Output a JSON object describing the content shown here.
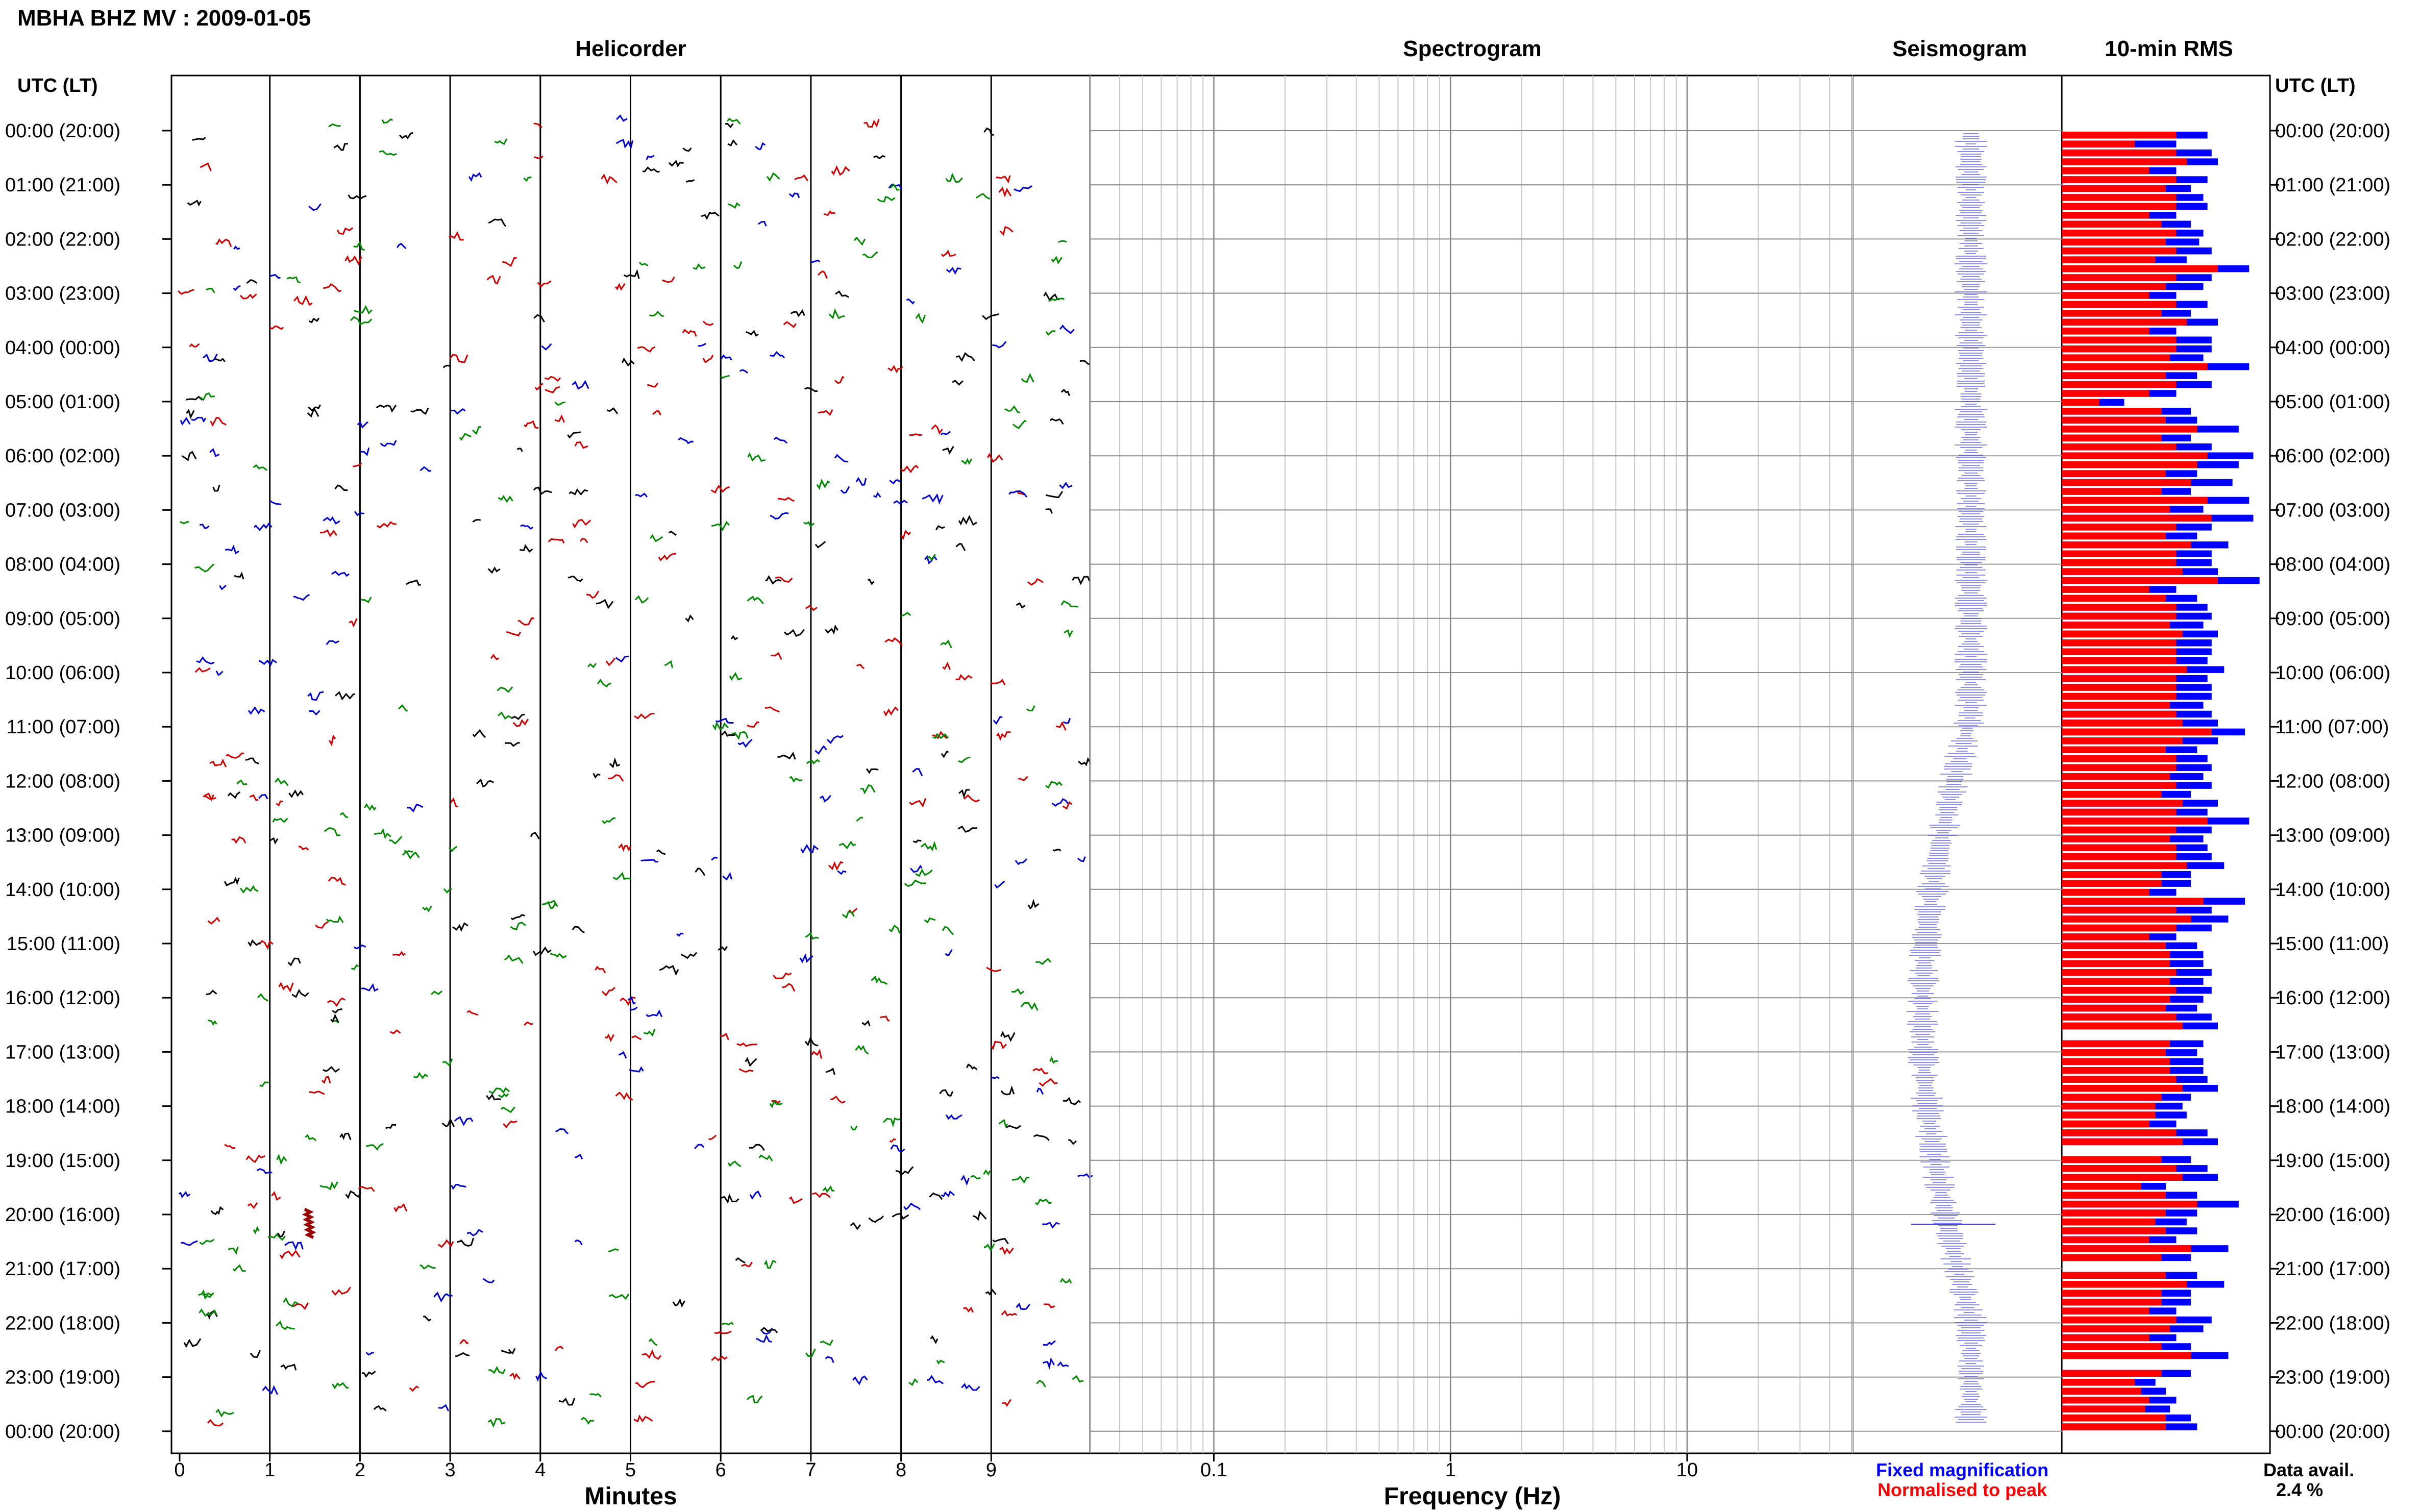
{
  "title": "MBHA BHZ MV : 2009-01-05",
  "panels": {
    "helicorder": "Helicorder",
    "spectrogram": "Spectrogram",
    "seismogram": "Seismogram",
    "rms": "10-min RMS"
  },
  "time_axis_header": "UTC (LT)",
  "time_labels": [
    "00:00 (20:00)",
    "01:00 (21:00)",
    "02:00 (22:00)",
    "03:00 (23:00)",
    "04:00 (00:00)",
    "05:00 (01:00)",
    "06:00 (02:00)",
    "07:00 (03:00)",
    "08:00 (04:00)",
    "09:00 (05:00)",
    "10:00 (06:00)",
    "11:00 (07:00)",
    "12:00 (08:00)",
    "13:00 (09:00)",
    "14:00 (10:00)",
    "15:00 (11:00)",
    "16:00 (12:00)",
    "17:00 (13:00)",
    "18:00 (14:00)",
    "19:00 (15:00)",
    "20:00 (16:00)",
    "21:00 (17:00)",
    "22:00 (18:00)",
    "23:00 (19:00)",
    "00:00 (20:00)"
  ],
  "minutes_axis": {
    "label": "Minutes",
    "ticks": [
      "0",
      "1",
      "2",
      "3",
      "4",
      "5",
      "6",
      "7",
      "8",
      "9"
    ]
  },
  "frequency_axis": {
    "label": "Frequency (Hz)",
    "ticks": [
      "0.1",
      "1",
      "10"
    ],
    "scale": "log",
    "range": [
      0.03,
      50
    ]
  },
  "legend": {
    "fixed": "Fixed magnification",
    "normalised": "Normalised to peak",
    "fixed_color": "#0000ff",
    "normalised_color": "#ff0000"
  },
  "data_avail": {
    "label": "Data avail.",
    "value": "2.4 %"
  },
  "helicorder_colors": [
    "#000000",
    "#cc0000",
    "#0000cc",
    "#008800"
  ],
  "chart_data": {
    "type": "bar",
    "description_source": "10-min RMS panel: relative bar lengths (0-1) per 10-minute window, 144 windows",
    "rms_blue": [
      0.7,
      0.55,
      0.72,
      0.75,
      0.55,
      0.7,
      0.62,
      0.68,
      0.7,
      0.55,
      0.62,
      0.68,
      0.66,
      0.72,
      0.6,
      0.9,
      0.72,
      0.68,
      0.55,
      0.7,
      0.62,
      0.75,
      0.55,
      0.72,
      0.72,
      0.68,
      0.9,
      0.65,
      0.72,
      0.55,
      0.3,
      0.62,
      0.65,
      0.85,
      0.62,
      0.72,
      0.92,
      0.85,
      0.65,
      0.82,
      0.62,
      0.9,
      0.68,
      0.92,
      0.72,
      0.65,
      0.8,
      0.72,
      0.72,
      0.75,
      0.95,
      0.55,
      0.65,
      0.7,
      0.72,
      0.68,
      0.75,
      0.72,
      0.72,
      0.7,
      0.78,
      0.7,
      0.72,
      0.72,
      0.68,
      0.72,
      0.75,
      0.88,
      0.75,
      0.65,
      0.7,
      0.72,
      0.68,
      0.72,
      0.62,
      0.75,
      0.7,
      0.9,
      0.72,
      0.68,
      0.7,
      0.72,
      0.78,
      0.62,
      0.62,
      0.55,
      0.88,
      0.72,
      0.8,
      0.72,
      0.55,
      0.65,
      0.68,
      0.68,
      0.72,
      0.68,
      0.72,
      0.68,
      0.65,
      0.72,
      0.75,
      0.0,
      0.68,
      0.65,
      0.68,
      0.68,
      0.7,
      0.75,
      0.62,
      0.58,
      0.6,
      0.55,
      0.7,
      0.75,
      0.0,
      0.62,
      0.7,
      0.75,
      0.5,
      0.65,
      0.85,
      0.65,
      0.6,
      0.65,
      0.55,
      0.8,
      0.62,
      0.0,
      0.65,
      0.78,
      0.62,
      0.62,
      0.55,
      0.72,
      0.68,
      0.55,
      0.62,
      0.8,
      0.0,
      0.62,
      0.45,
      0.5,
      0.55,
      0.52,
      0.62,
      0.65
    ],
    "rms_red": [
      0.55,
      0.35,
      0.55,
      0.6,
      0.42,
      0.55,
      0.5,
      0.55,
      0.55,
      0.42,
      0.48,
      0.55,
      0.5,
      0.55,
      0.45,
      0.75,
      0.55,
      0.5,
      0.42,
      0.55,
      0.48,
      0.6,
      0.42,
      0.55,
      0.55,
      0.52,
      0.7,
      0.5,
      0.55,
      0.42,
      0.18,
      0.48,
      0.5,
      0.65,
      0.48,
      0.55,
      0.7,
      0.65,
      0.5,
      0.62,
      0.48,
      0.7,
      0.52,
      0.72,
      0.55,
      0.5,
      0.62,
      0.55,
      0.55,
      0.58,
      0.75,
      0.42,
      0.5,
      0.55,
      0.55,
      0.52,
      0.58,
      0.55,
      0.55,
      0.55,
      0.6,
      0.55,
      0.55,
      0.55,
      0.52,
      0.55,
      0.58,
      0.72,
      0.58,
      0.5,
      0.55,
      0.55,
      0.52,
      0.55,
      0.48,
      0.58,
      0.55,
      0.7,
      0.55,
      0.52,
      0.55,
      0.55,
      0.6,
      0.48,
      0.48,
      0.42,
      0.68,
      0.55,
      0.62,
      0.55,
      0.42,
      0.5,
      0.52,
      0.52,
      0.55,
      0.52,
      0.55,
      0.52,
      0.5,
      0.55,
      0.58,
      0.0,
      0.52,
      0.5,
      0.52,
      0.52,
      0.55,
      0.58,
      0.48,
      0.45,
      0.45,
      0.42,
      0.55,
      0.58,
      0.0,
      0.48,
      0.55,
      0.58,
      0.38,
      0.5,
      0.65,
      0.5,
      0.45,
      0.5,
      0.42,
      0.62,
      0.48,
      0.0,
      0.5,
      0.6,
      0.48,
      0.48,
      0.42,
      0.55,
      0.52,
      0.42,
      0.48,
      0.62,
      0.0,
      0.48,
      0.35,
      0.38,
      0.42,
      0.4,
      0.5,
      0.5
    ]
  }
}
